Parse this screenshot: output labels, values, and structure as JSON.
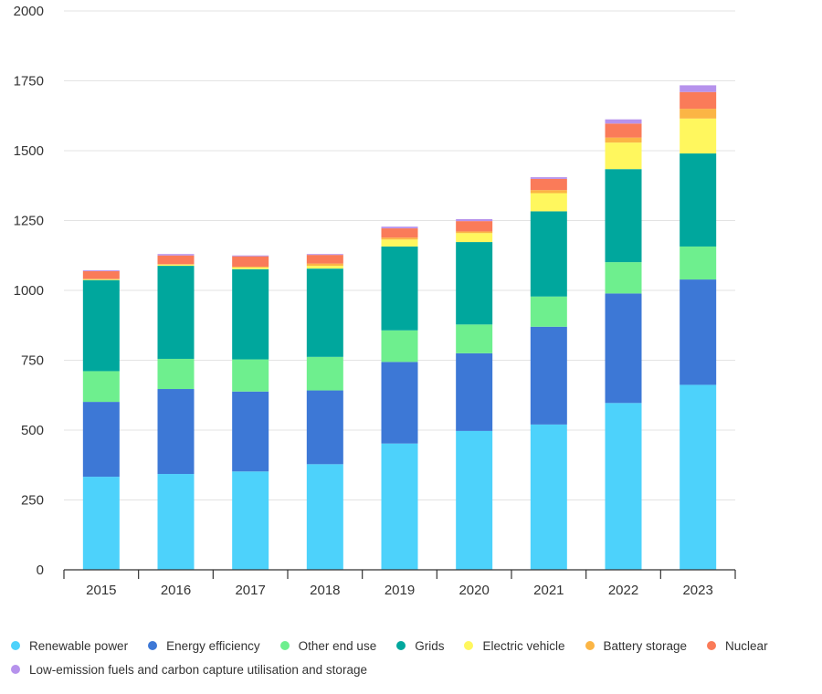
{
  "chart_data": {
    "type": "bar",
    "stacked": true,
    "title": "",
    "xlabel": "",
    "ylabel": "",
    "ylim": [
      0,
      2000
    ],
    "yticks": [
      0,
      250,
      500,
      750,
      1000,
      1250,
      1500,
      1750,
      2000
    ],
    "grid": true,
    "legend_position": "bottom",
    "categories": [
      "2015",
      "2016",
      "2017",
      "2018",
      "2019",
      "2020",
      "2021",
      "2022",
      "2023"
    ],
    "series": [
      {
        "name": "Renewable power",
        "color": "#4dd2fb",
        "values": [
          333,
          343,
          352,
          378,
          452,
          497,
          520,
          597,
          662
        ]
      },
      {
        "name": "Energy efficiency",
        "color": "#3d78d6",
        "values": [
          268,
          304,
          286,
          264,
          292,
          278,
          350,
          392,
          377
        ]
      },
      {
        "name": "Other end use",
        "color": "#6eef8e",
        "values": [
          110,
          108,
          115,
          120,
          113,
          103,
          108,
          112,
          118
        ]
      },
      {
        "name": "Grids",
        "color": "#00a79d",
        "values": [
          326,
          333,
          323,
          316,
          300,
          295,
          305,
          333,
          333
        ]
      },
      {
        "name": "Electric vehicle",
        "color": "#fff75e",
        "values": [
          3,
          4,
          6,
          10,
          25,
          32,
          65,
          95,
          125
        ]
      },
      {
        "name": "Battery storage",
        "color": "#fbb545",
        "values": [
          1,
          2,
          3,
          8,
          7,
          6,
          11,
          18,
          35
        ]
      },
      {
        "name": "Nuclear",
        "color": "#fa7b59",
        "values": [
          28,
          31,
          37,
          31,
          33,
          37,
          40,
          50,
          60
        ]
      },
      {
        "name": "Low-emission fuels and carbon capture utilisation and storage",
        "color": "#b692ec",
        "values": [
          3,
          5,
          3,
          3,
          6,
          7,
          6,
          15,
          24
        ]
      }
    ]
  },
  "legend": {
    "row1": [
      "Renewable power",
      "Energy efficiency",
      "Other end use",
      "Grids",
      "Electric vehicle",
      "Battery storage",
      "Nuclear"
    ],
    "row2": [
      "Low-emission fuels and carbon capture utilisation and storage"
    ]
  }
}
